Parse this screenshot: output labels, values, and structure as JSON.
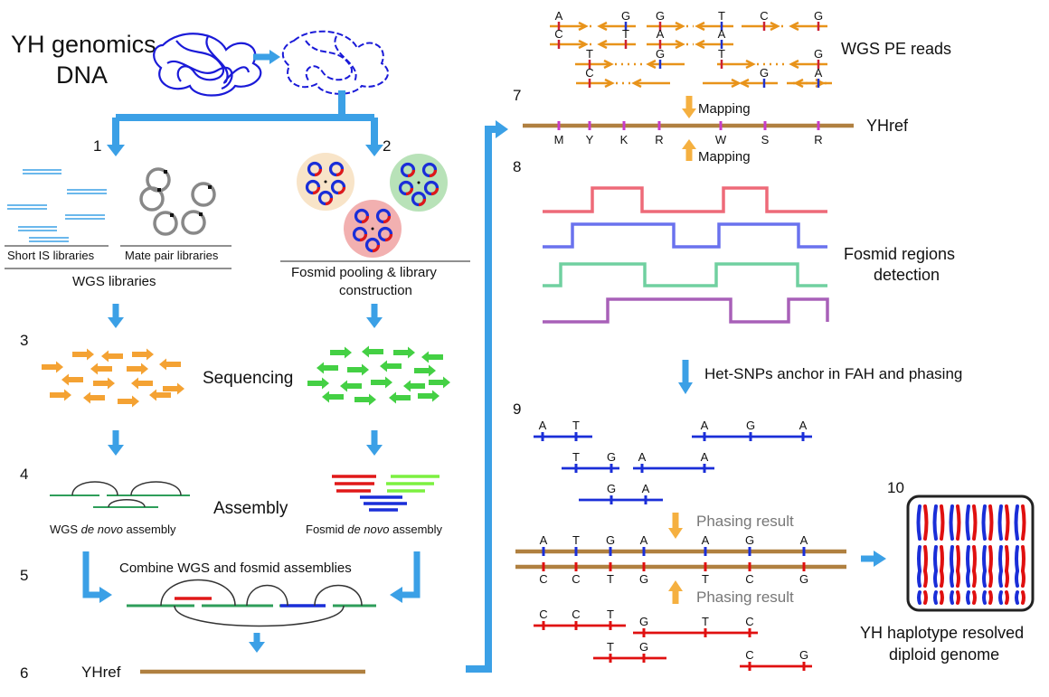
{
  "title": {
    "line1": "YH genomics",
    "line2": "DNA"
  },
  "steps": [
    "1",
    "2",
    "3",
    "4",
    "5",
    "6",
    "7",
    "8",
    "9",
    "10"
  ],
  "labels": {
    "short_is": "Short IS libraries",
    "mate_pair": "Mate pair libraries",
    "wgs_libraries": "WGS libraries",
    "fosmid_pool_1": "Fosmid pooling & library",
    "fosmid_pool_2": "construction",
    "sequencing": "Sequencing",
    "assembly": "Assembly",
    "wgs_assembly_pre": "WGS ",
    "wgs_assembly_em": "de novo",
    "wgs_assembly_post": " assembly",
    "fosmid_assembly_pre": "Fosmid ",
    "fosmid_assembly_em": "de novo",
    "fosmid_assembly_post": " assembly",
    "combine": "Combine WGS and fosmid assemblies",
    "yhref_left": "YHref",
    "wgs_pe_reads": "WGS PE reads",
    "mapping_top": "Mapping",
    "mapping_bottom": "Mapping",
    "yhref_right": "YHref",
    "fosmid_regions_1": "Fosmid regions",
    "fosmid_regions_2": "detection",
    "het_snps": "Het-SNPs anchor in FAH and phasing",
    "phasing_top": "Phasing result",
    "phasing_bottom": "Phasing result",
    "final_1": "YH haplotype resolved",
    "final_2": "diploid genome"
  },
  "ref_iupac": [
    "M",
    "Y",
    "K",
    "R",
    "W",
    "S",
    "R"
  ],
  "pe_reads_letters": {
    "row1": [
      "A",
      "G",
      "G",
      "T",
      "C",
      "G"
    ],
    "row2": [
      "C",
      "T",
      "A",
      "A"
    ],
    "row3": [
      "T",
      "G",
      "T",
      "G"
    ],
    "row4": [
      "C",
      "G",
      "A"
    ]
  },
  "hap_blue_reads": [
    [
      "A",
      "T"
    ],
    [
      "A",
      "G",
      "A"
    ],
    [
      "T",
      "G"
    ],
    [
      "A",
      "A"
    ],
    [
      "G",
      "A"
    ]
  ],
  "hap_top_alleles": [
    "A",
    "T",
    "G",
    "A",
    "A",
    "G",
    "A"
  ],
  "hap_bottom_alleles": [
    "C",
    "C",
    "T",
    "G",
    "T",
    "C",
    "G"
  ],
  "hap_red_reads": [
    [
      "C",
      "C",
      "T"
    ],
    [
      "G",
      "T",
      "C"
    ],
    [
      "T",
      "G"
    ],
    [
      "C",
      "G"
    ]
  ],
  "colors": {
    "arrow_blue": "#3ba0e6",
    "dna_blue": "#1a1ad8",
    "ref_brown": "#b08040",
    "read_orange": "#f0a030",
    "read_green": "#44cc44",
    "hap_blue": "#1a2ed8",
    "hap_red": "#e01010",
    "gray_label": "#777777"
  }
}
